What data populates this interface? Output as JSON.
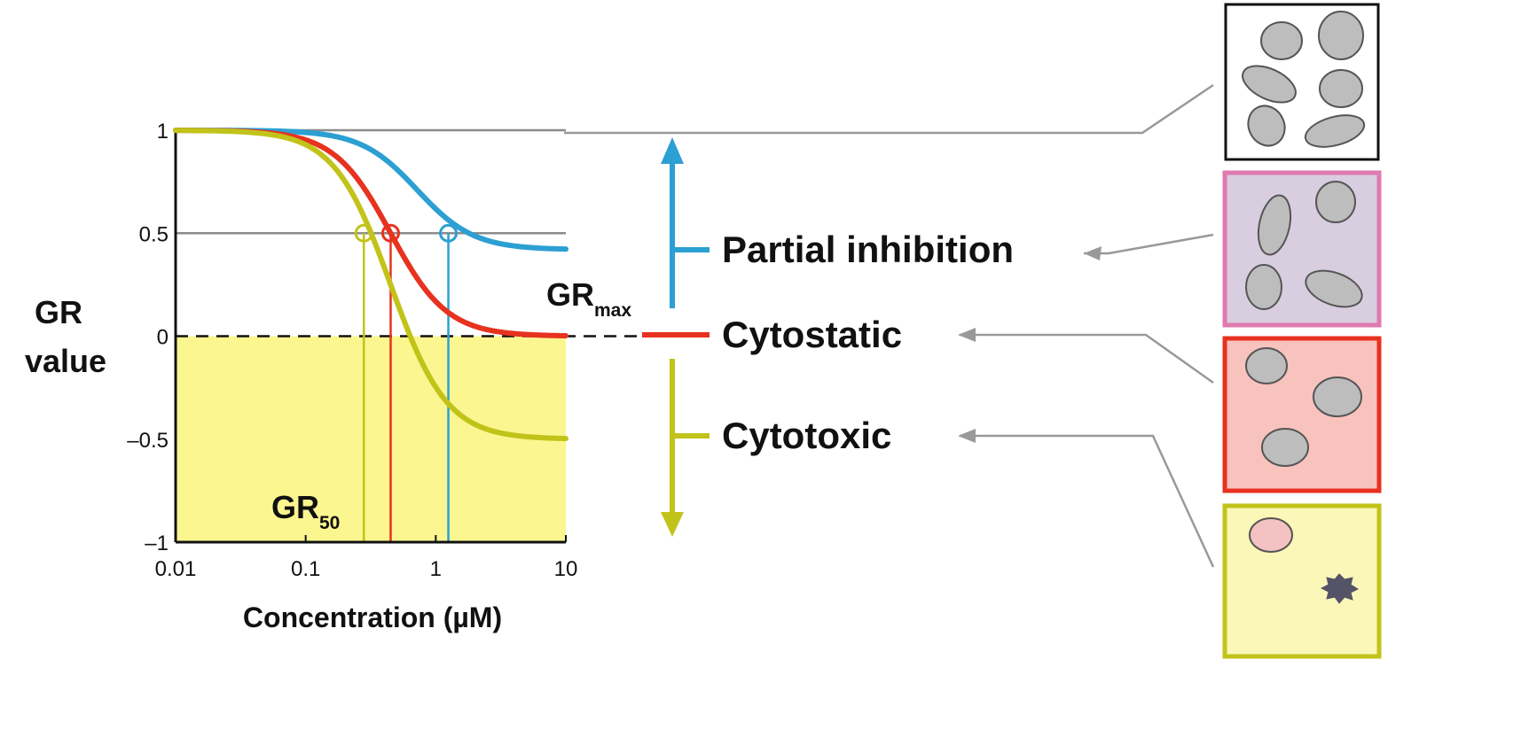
{
  "chart_data": {
    "type": "line",
    "title": "",
    "xlabel": "Concentration (µM)",
    "ylabel_line1": "GR",
    "ylabel_line2": "value",
    "x_scale": "log",
    "xlim": [
      0.01,
      10
    ],
    "ylim": [
      -1,
      1
    ],
    "x_ticks": [
      0.01,
      0.1,
      1,
      10
    ],
    "x_tick_labels": [
      "0.01",
      "0.1",
      "1",
      "10"
    ],
    "y_ticks": [
      1,
      0.5,
      0,
      -0.5,
      -1
    ],
    "y_tick_labels": [
      "1",
      "0.5",
      "0",
      "–0.5",
      "–1"
    ],
    "shaded_region": {
      "y_from": -1,
      "y_to": 0,
      "color": "#fcf690"
    },
    "reference_lines": [
      {
        "y": 1,
        "style": "solid",
        "color": "#8c8c8c"
      },
      {
        "y": 0.5,
        "style": "solid",
        "color": "#8c8c8c"
      },
      {
        "y": 0,
        "style": "dashed",
        "color": "#111111"
      }
    ],
    "series": [
      {
        "key": "partial",
        "color": "#2c9fd3",
        "gr_inf": 0.42,
        "gr50": 1.25,
        "ec50": 0.72,
        "hill": 2
      },
      {
        "key": "cytostatic",
        "color": "#e7321f",
        "gr_inf": 0.0,
        "gr50": 0.45,
        "ec50": 0.45,
        "hill": 2
      },
      {
        "key": "cytotoxic",
        "color": "#c2c31a",
        "gr_inf": -0.5,
        "gr50": 0.28,
        "ec50": 0.45,
        "hill": 2
      }
    ],
    "annotations": {
      "gr50_main": "GR",
      "gr50_sub": "50",
      "grmax_main": "GR",
      "grmax_sub": "max"
    }
  },
  "legend": [
    {
      "label": "Partial inhibition",
      "color": "#2c9fd3"
    },
    {
      "label": "Cytostatic",
      "color": "#e7321f"
    },
    {
      "label": "Cytotoxic",
      "color": "#c2c31a"
    }
  ],
  "panels": [
    {
      "key": "untreated",
      "border": "#111111",
      "fill": "#ffffff"
    },
    {
      "key": "partial",
      "border": "#e07ab0",
      "fill": "#d9cde0"
    },
    {
      "key": "cytostatic",
      "border": "#e7321f",
      "fill": "#f8c2bd"
    },
    {
      "key": "cytotoxic",
      "border": "#c2c31a",
      "fill": "#fbf7b8"
    }
  ],
  "colors": {
    "cell_fill": "#bdbdbd",
    "cell_stroke": "#555555",
    "dead_cell_fill": "#f4c2c2",
    "debris_fill": "#545466",
    "connector": "#999999"
  }
}
